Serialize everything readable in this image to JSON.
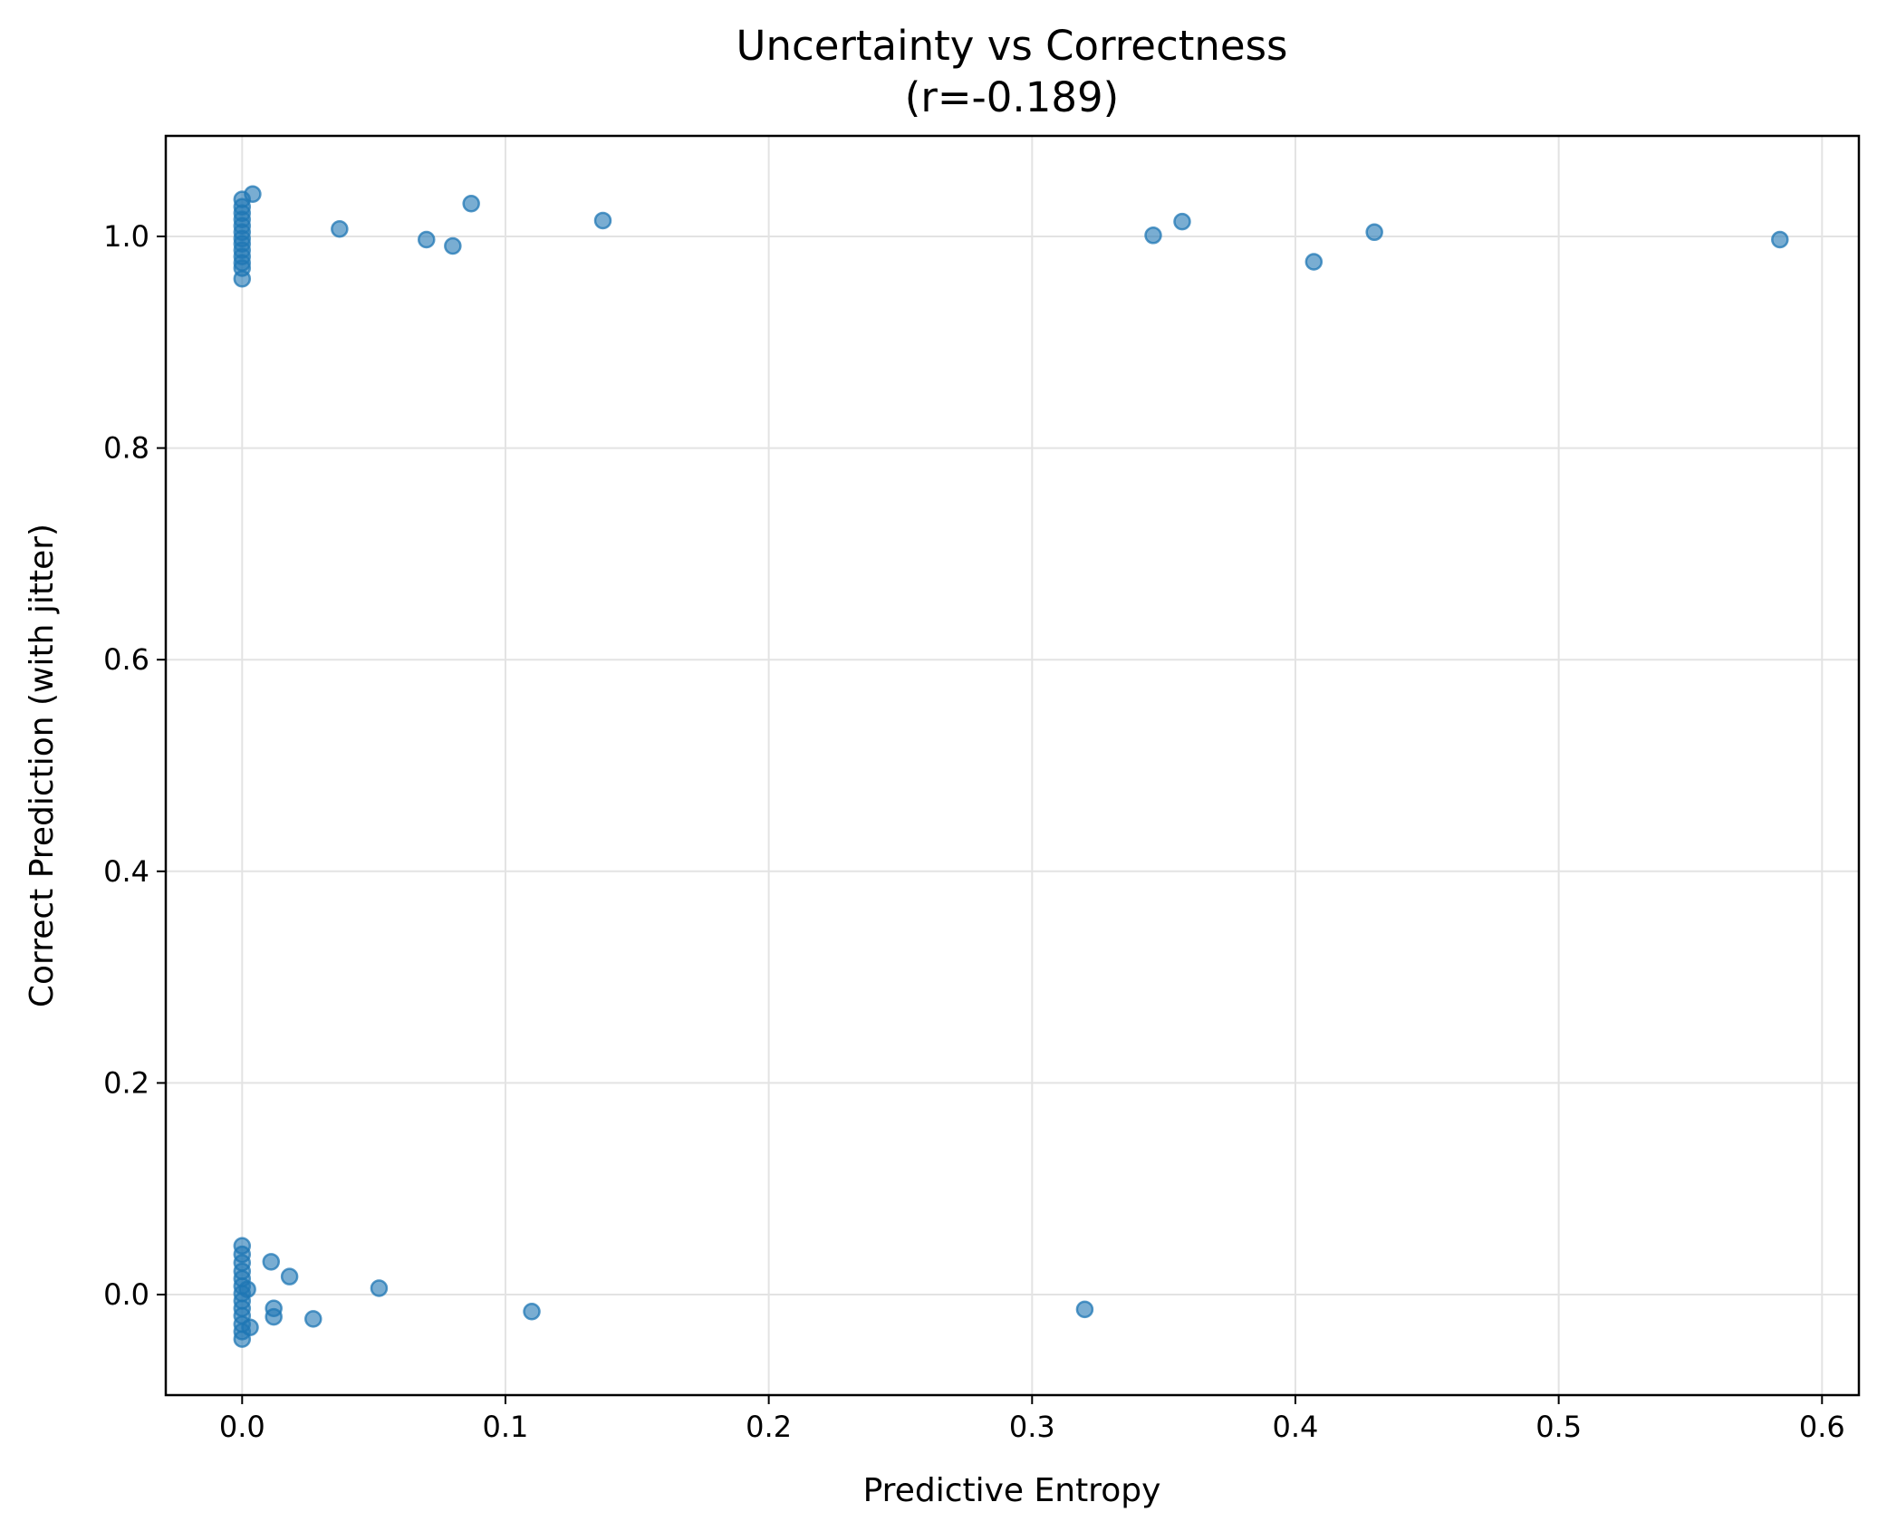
{
  "chart_data": {
    "type": "scatter",
    "title": "Uncertainty vs Correctness",
    "subtitle": "(r=-0.189)",
    "xlabel": "Predictive Entropy",
    "ylabel": "Correct Prediction (with jitter)",
    "xlim": [
      -0.029,
      0.614
    ],
    "ylim": [
      -0.095,
      1.095
    ],
    "xticks": [
      0.0,
      0.1,
      0.2,
      0.3,
      0.4,
      0.5,
      0.6
    ],
    "xtick_labels": [
      "0.0",
      "0.1",
      "0.2",
      "0.3",
      "0.4",
      "0.5",
      "0.6"
    ],
    "yticks": [
      0.0,
      0.2,
      0.4,
      0.6,
      0.8,
      1.0
    ],
    "ytick_labels": [
      "0.0",
      "0.2",
      "0.4",
      "0.6",
      "0.8",
      "1.0"
    ],
    "grid": true,
    "color": "#1f77b4",
    "points": [
      {
        "x": 0.0,
        "y": 1.035
      },
      {
        "x": 0.004,
        "y": 1.04
      },
      {
        "x": 0.0,
        "y": 1.028
      },
      {
        "x": 0.0,
        "y": 1.022
      },
      {
        "x": 0.0,
        "y": 1.016
      },
      {
        "x": 0.0,
        "y": 1.01
      },
      {
        "x": 0.0,
        "y": 1.004
      },
      {
        "x": 0.0,
        "y": 0.998
      },
      {
        "x": 0.0,
        "y": 0.993
      },
      {
        "x": 0.0,
        "y": 0.987
      },
      {
        "x": 0.0,
        "y": 0.981
      },
      {
        "x": 0.0,
        "y": 0.975
      },
      {
        "x": 0.0,
        "y": 0.97
      },
      {
        "x": 0.0,
        "y": 0.96
      },
      {
        "x": 0.037,
        "y": 1.007
      },
      {
        "x": 0.07,
        "y": 0.997
      },
      {
        "x": 0.08,
        "y": 0.991
      },
      {
        "x": 0.087,
        "y": 1.031
      },
      {
        "x": 0.137,
        "y": 1.015
      },
      {
        "x": 0.346,
        "y": 1.001
      },
      {
        "x": 0.357,
        "y": 1.014
      },
      {
        "x": 0.407,
        "y": 0.976
      },
      {
        "x": 0.43,
        "y": 1.004
      },
      {
        "x": 0.584,
        "y": 0.997
      },
      {
        "x": 0.0,
        "y": 0.046
      },
      {
        "x": 0.0,
        "y": 0.038
      },
      {
        "x": 0.0,
        "y": 0.03
      },
      {
        "x": 0.0,
        "y": 0.022
      },
      {
        "x": 0.0,
        "y": 0.015
      },
      {
        "x": 0.0,
        "y": 0.008
      },
      {
        "x": 0.002,
        "y": 0.005
      },
      {
        "x": 0.0,
        "y": 0.001
      },
      {
        "x": 0.0,
        "y": -0.006
      },
      {
        "x": 0.0,
        "y": -0.013
      },
      {
        "x": 0.0,
        "y": -0.02
      },
      {
        "x": 0.0,
        "y": -0.028
      },
      {
        "x": 0.0,
        "y": -0.035
      },
      {
        "x": 0.0,
        "y": -0.042
      },
      {
        "x": 0.003,
        "y": -0.031
      },
      {
        "x": 0.011,
        "y": 0.031
      },
      {
        "x": 0.012,
        "y": -0.013
      },
      {
        "x": 0.012,
        "y": -0.021
      },
      {
        "x": 0.018,
        "y": 0.017
      },
      {
        "x": 0.027,
        "y": -0.023
      },
      {
        "x": 0.052,
        "y": 0.006
      },
      {
        "x": 0.11,
        "y": -0.016
      },
      {
        "x": 0.32,
        "y": -0.014
      }
    ]
  }
}
